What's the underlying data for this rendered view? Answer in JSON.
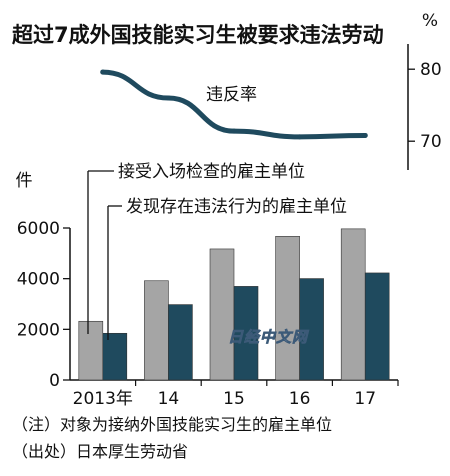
{
  "title": "超过7成外国技能实习生被要求违法劳动",
  "watermark": "日经中文网",
  "notes": [
    "（注）对象为接纳外国技能实习生的雇主单位",
    "（出处）日本厚生劳动省"
  ],
  "colors": {
    "bar_inspected": "#a5a5a5",
    "bar_violating": "#1f4a5e",
    "line": "#1f4a5e",
    "axis": "#111111"
  },
  "chart_data": [
    {
      "type": "line",
      "x": [
        "2013年",
        "14",
        "15",
        "16",
        "17"
      ],
      "series": [
        {
          "name": "违反率",
          "values": [
            79.6,
            76.0,
            71.4,
            70.6,
            70.8
          ]
        }
      ],
      "y_unit": "%",
      "yticks": [
        70,
        80
      ],
      "ylim": [
        66,
        86
      ],
      "y_axis_position": "right",
      "grid": false
    },
    {
      "type": "bar",
      "categories": [
        "2013年",
        "14",
        "15",
        "16",
        "17"
      ],
      "series": [
        {
          "name": "接受入场检查的雇主单位",
          "values": [
            2318,
            3918,
            5173,
            5672,
            5966
          ]
        },
        {
          "name": "发现存在违法行为的雇主单位",
          "values": [
            1844,
            2977,
            3695,
            4004,
            4226
          ]
        }
      ],
      "y_unit": "件",
      "yticks": [
        0,
        2000,
        4000,
        6000
      ],
      "ylim": [
        0,
        6000
      ],
      "legend": "top-left",
      "grid": false
    }
  ]
}
